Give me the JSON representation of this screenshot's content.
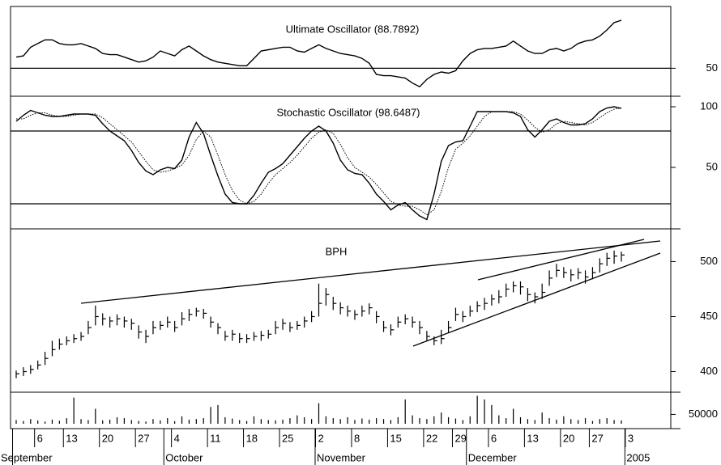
{
  "chart_data": [
    {
      "type": "line",
      "title": "Ultimate Oscillator (88.7892)",
      "color": "#000000",
      "xlim": [
        0,
        84
      ],
      "ylim": [
        28,
        100
      ],
      "yticks": [
        50
      ],
      "ref_lines": [
        50
      ],
      "values": [
        59,
        60,
        67,
        70,
        73,
        73,
        70,
        69,
        69,
        70,
        68,
        66,
        62,
        61,
        61,
        59,
        57,
        55,
        56,
        59,
        64,
        62,
        60,
        65,
        68,
        64,
        60,
        57,
        55,
        54,
        53,
        52,
        52,
        58,
        64,
        65,
        66,
        67,
        67,
        64,
        63,
        66,
        69,
        66,
        64,
        62,
        61,
        60,
        58,
        54,
        45,
        44,
        44,
        43,
        42,
        38,
        35,
        41,
        45,
        47,
        46,
        48,
        56,
        62,
        65,
        66,
        66,
        67,
        68,
        72,
        68,
        64,
        62,
        62,
        65,
        66,
        64,
        66,
        70,
        72,
        73,
        76,
        81,
        87,
        88.7892
      ]
    },
    {
      "type": "line",
      "title": "Stochastic Oscillator (98.6487)",
      "color": "#000000",
      "xlim": [
        0,
        84
      ],
      "ylim": [
        0,
        108
      ],
      "yticks": [
        50,
        100
      ],
      "ref_lines": [
        20,
        80
      ],
      "series": [
        {
          "dash": false,
          "values": [
            88,
            93,
            97,
            95,
            93,
            92,
            92,
            93,
            94,
            94,
            94,
            93,
            86,
            80,
            76,
            72,
            64,
            54,
            47,
            44,
            48,
            50,
            49,
            56,
            75,
            87,
            78,
            60,
            43,
            28,
            21,
            20,
            20,
            27,
            37,
            46,
            49,
            53,
            60,
            67,
            74,
            80,
            84,
            80,
            70,
            56,
            48,
            45,
            44,
            37,
            28,
            22,
            15,
            19,
            21,
            15,
            10,
            7,
            28,
            55,
            68,
            71,
            72,
            84,
            96,
            96,
            96,
            96,
            96,
            95,
            92,
            81,
            75,
            81,
            88,
            90,
            87,
            85,
            85,
            86,
            90,
            96,
            99,
            100,
            98.6487
          ]
        },
        {
          "dash": true,
          "values": [
            90,
            90,
            93,
            95,
            95,
            93,
            92,
            92,
            93,
            94,
            94,
            94,
            91,
            86,
            81,
            76,
            71,
            63,
            55,
            48,
            46,
            47,
            49,
            52,
            60,
            73,
            80,
            75,
            60,
            44,
            31,
            23,
            20,
            22,
            28,
            37,
            44,
            49,
            54,
            60,
            67,
            74,
            79,
            81,
            78,
            69,
            58,
            50,
            46,
            42,
            36,
            29,
            22,
            19,
            18,
            18,
            15,
            11,
            15,
            30,
            50,
            65,
            70,
            76,
            84,
            92,
            96,
            96,
            96,
            96,
            94,
            89,
            83,
            79,
            81,
            86,
            88,
            87,
            86,
            85,
            87,
            91,
            95,
            98,
            99
          ]
        }
      ]
    },
    {
      "type": "hlc",
      "title": "BPH",
      "color": "#000000",
      "xlim": [
        0,
        84
      ],
      "ylim": [
        382,
        529
      ],
      "yticks": [
        400,
        450,
        500
      ],
      "high": [
        401,
        404,
        406,
        410,
        418,
        428,
        430,
        432,
        434,
        436,
        446,
        460,
        453,
        450,
        452,
        450,
        448,
        442,
        438,
        446,
        446,
        450,
        446,
        454,
        457,
        458,
        457,
        450,
        444,
        437,
        438,
        435,
        434,
        436,
        437,
        438,
        446,
        448,
        445,
        446,
        450,
        455,
        480,
        476,
        468,
        463,
        460,
        456,
        460,
        462,
        455,
        446,
        443,
        450,
        452,
        450,
        446,
        437,
        432,
        438,
        446,
        458,
        455,
        460,
        464,
        467,
        470,
        474,
        480,
        482,
        482,
        476,
        472,
        480,
        492,
        498,
        495,
        493,
        494,
        492,
        495,
        503,
        508,
        510,
        509
      ],
      "low": [
        394,
        396,
        398,
        402,
        406,
        414,
        420,
        424,
        426,
        428,
        434,
        442,
        442,
        440,
        442,
        440,
        438,
        430,
        426,
        434,
        438,
        440,
        436,
        442,
        446,
        450,
        448,
        440,
        434,
        428,
        428,
        426,
        426,
        428,
        428,
        430,
        434,
        438,
        436,
        438,
        440,
        445,
        450,
        460,
        456,
        452,
        450,
        447,
        450,
        452,
        444,
        436,
        433,
        440,
        443,
        440,
        434,
        428,
        424,
        425,
        435,
        446,
        445,
        450,
        454,
        456,
        460,
        462,
        468,
        472,
        470,
        464,
        462,
        466,
        478,
        486,
        485,
        482,
        484,
        480,
        484,
        490,
        496,
        498,
        500
      ],
      "close": [
        398,
        400,
        402,
        406,
        412,
        420,
        425,
        428,
        430,
        432,
        440,
        450,
        448,
        446,
        448,
        446,
        444,
        436,
        432,
        440,
        442,
        445,
        440,
        448,
        452,
        455,
        453,
        445,
        440,
        432,
        434,
        430,
        430,
        432,
        433,
        434,
        440,
        444,
        440,
        442,
        446,
        450,
        462,
        470,
        462,
        458,
        455,
        452,
        455,
        458,
        450,
        440,
        438,
        445,
        448,
        445,
        440,
        432,
        428,
        430,
        440,
        452,
        450,
        455,
        460,
        462,
        466,
        468,
        475,
        478,
        477,
        470,
        468,
        472,
        485,
        492,
        490,
        488,
        490,
        486,
        490,
        498,
        503,
        505,
        506
      ]
    },
    {
      "type": "bar",
      "color": "#000000",
      "xlim": [
        0,
        84
      ],
      "ylim": [
        0,
        160000
      ],
      "yticks": [
        50000
      ],
      "values": [
        20000,
        15000,
        25000,
        18000,
        12000,
        22000,
        16000,
        30000,
        140000,
        25000,
        20000,
        80000,
        18000,
        22000,
        35000,
        30000,
        20000,
        15000,
        12000,
        25000,
        18000,
        30000,
        14000,
        40000,
        22000,
        25000,
        30000,
        90000,
        100000,
        35000,
        28000,
        20000,
        15000,
        40000,
        25000,
        20000,
        18000,
        22000,
        30000,
        45000,
        35000,
        25000,
        110000,
        40000,
        30000,
        25000,
        35000,
        20000,
        28000,
        22000,
        30000,
        25000,
        20000,
        35000,
        130000,
        45000,
        30000,
        25000,
        40000,
        60000,
        35000,
        28000,
        20000,
        40000,
        150000,
        130000,
        100000,
        45000,
        30000,
        80000,
        35000,
        25000,
        20000,
        60000,
        30000,
        22000,
        40000,
        25000,
        20000,
        30000,
        15000,
        25000,
        30000,
        20000,
        18000
      ],
      "xticks": [
        {
          "value": 3,
          "label": "6"
        },
        {
          "value": 7,
          "label": "13"
        },
        {
          "value": 12,
          "label": "20"
        },
        {
          "value": 17,
          "label": "27"
        },
        {
          "value": 22,
          "label": "4"
        },
        {
          "value": 27,
          "label": "11"
        },
        {
          "value": 32,
          "label": "18"
        },
        {
          "value": 37,
          "label": "25"
        },
        {
          "value": 42,
          "label": "2"
        },
        {
          "value": 47,
          "label": "8"
        },
        {
          "value": 52,
          "label": "15"
        },
        {
          "value": 57,
          "label": "22"
        },
        {
          "value": 61,
          "label": "29"
        },
        {
          "value": 66,
          "label": "6"
        },
        {
          "value": 71,
          "label": "13"
        },
        {
          "value": 76,
          "label": "20"
        },
        {
          "value": 80,
          "label": "27"
        },
        {
          "value": 85,
          "label": "3"
        }
      ],
      "month_ticks": [
        {
          "value": 0,
          "label": "September"
        },
        {
          "value": 21,
          "label": "October"
        },
        {
          "value": 42,
          "label": "November"
        },
        {
          "value": 63,
          "label": "December"
        },
        {
          "value": 85,
          "label": "2005"
        }
      ]
    }
  ]
}
